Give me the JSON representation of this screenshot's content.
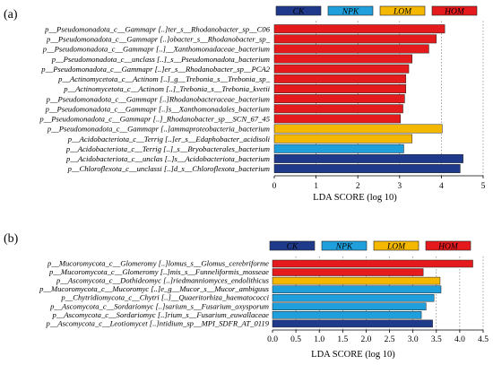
{
  "colors": {
    "CK": "#1f3a8a",
    "NPK": "#1f9fdc",
    "LOM": "#f5b800",
    "HOM": "#e41a1c"
  },
  "chart_data": [
    {
      "panel": "(a)",
      "type": "bar",
      "orientation": "horizontal",
      "xlabel": "LDA SCORE (log 10)",
      "xlim": [
        0,
        5
      ],
      "xticks": [
        "0",
        "1",
        "2",
        "3",
        "4",
        "5"
      ],
      "legend": [
        "CK",
        "NPK",
        "LOM",
        "HOM"
      ],
      "legend_position": "top",
      "grid": "vertical dotted",
      "bars": [
        {
          "label": "p__Pseudomonadota_c__Gammapr [..]ter_s__Rhodanobacter_sp__C06",
          "value": 4.08,
          "group": "HOM"
        },
        {
          "label": "p__Pseudomonadota_c__Gammapr [..]obacter_s__Rhodanobacter_sp_",
          "value": 3.88,
          "group": "HOM"
        },
        {
          "label": "p__Pseudomonadota_c__Gammapr [..]__Xanthomonadaceae_bacterium",
          "value": 3.7,
          "group": "HOM"
        },
        {
          "label": "p__Pseudomonadota_c__unclass [..]_s__Pseudomonadota_bacterium",
          "value": 3.3,
          "group": "HOM"
        },
        {
          "label": "p__Pseudomonadota_c__Gammapr [..]er_s__Rhodanobacter_sp__PCA2",
          "value": 3.22,
          "group": "HOM"
        },
        {
          "label": "p__Actinomycetota_c__Actinom [..]_g__Trebonia_s__Trebonia_sp_",
          "value": 3.15,
          "group": "HOM"
        },
        {
          "label": "p__Actinomycetota_c__Actinom [..]_Trebonia_s__Trebonia_kvetii",
          "value": 3.15,
          "group": "HOM"
        },
        {
          "label": "p__Pseudomonadota_c__Gammapr [..]Rhodanobacteraceae_bacterium",
          "value": 3.12,
          "group": "HOM"
        },
        {
          "label": "p__Pseudomonadota_c__Gammapr [..]s__Xanthomonadales_bacterium",
          "value": 3.08,
          "group": "HOM"
        },
        {
          "label": "p__Pseudomonadota_c__Gammapr [..]_Rhodanobacter_sp__SCN_67_45",
          "value": 3.02,
          "group": "HOM"
        },
        {
          "label": "p__Pseudomonadota_c__Gammapr [..]ammaproteobacteria_bacterium",
          "value": 4.02,
          "group": "LOM"
        },
        {
          "label": "p__Acidobacteriota_c__Terrig [..]er_s__Edaphobacter_acidisoli",
          "value": 3.3,
          "group": "LOM"
        },
        {
          "label": "p__Acidobacteriota_c__Terrig [..]_s__Bryobacterales_bacterium",
          "value": 3.1,
          "group": "NPK"
        },
        {
          "label": "p__Acidobacteriota_c__unclas [..]s__Acidobacteriota_bacterium",
          "value": 4.52,
          "group": "CK"
        },
        {
          "label": "p__Chloroflexota_c__unclassi [..]d_s__Chloroflexota_bacterium",
          "value": 4.45,
          "group": "CK"
        }
      ]
    },
    {
      "panel": "(b)",
      "type": "bar",
      "orientation": "horizontal",
      "xlabel": "LDA SCORE (log 10)",
      "xlim": [
        0,
        4.5
      ],
      "xticks": [
        "0.0",
        "0.5",
        "1.0",
        "1.5",
        "2.0",
        "2.5",
        "3.0",
        "3.5",
        "4.0",
        "4.5"
      ],
      "legend": [
        "CK",
        "NPK",
        "LOM",
        "HOM"
      ],
      "legend_position": "top",
      "grid": "vertical dotted",
      "bars": [
        {
          "label": "p__Mucoromycota_c__Glomeromy [..]lomus_s__Glomus_cerebriforme",
          "value": 4.28,
          "group": "HOM"
        },
        {
          "label": "p__Mucoromycota_c__Glomeromy [..]mis_s__Funneliformis_mosseae",
          "value": 3.22,
          "group": "HOM"
        },
        {
          "label": "p__Ascomycota_c__Dothideomyc [..]riedmanniomyces_endolithicus",
          "value": 3.58,
          "group": "LOM"
        },
        {
          "label": "p__Mucoromycota_c__Mucoromyc [..]e_g__Mucor_s__Mucor_ambiguus",
          "value": 3.6,
          "group": "NPK"
        },
        {
          "label": "p__Chytridiomycota_c__Chytri [..]__Quaeritorhiza_haematococci",
          "value": 3.45,
          "group": "NPK"
        },
        {
          "label": "p__Ascomycota_c__Sordariomyc [..]sarium_s__Fusarium_oxysporum",
          "value": 3.28,
          "group": "NPK"
        },
        {
          "label": "p__Ascomycota_c__Sordariomyc [..]rium_s__Fusarium_euwallaceae",
          "value": 3.18,
          "group": "NPK"
        },
        {
          "label": "p__Ascomycota_c__Leotiomycet [..]ntidium_sp__MPI_SDFR_AT_0119",
          "value": 3.42,
          "group": "CK"
        }
      ]
    }
  ]
}
